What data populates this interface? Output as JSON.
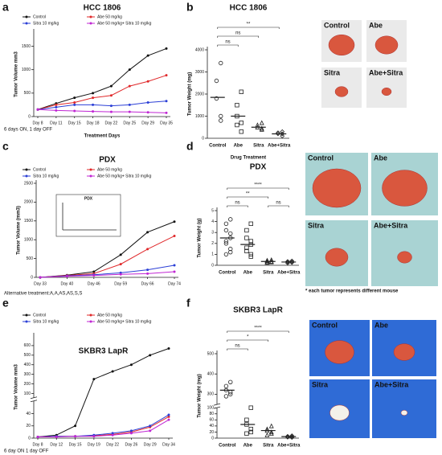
{
  "chart_data": [
    {
      "type": "line",
      "panel": "a",
      "title": "HCC 1806",
      "ylabel": "Tumor Volume mm3",
      "xlabel": "Treatment Days",
      "note": "6 days ON, 1 day OFF",
      "categories": [
        "Day 8",
        "Day 11",
        "Day 15",
        "Day 18",
        "Day 22",
        "Day 25",
        "Day 29",
        "Day 35"
      ],
      "ylim": [
        0,
        1800
      ],
      "yticks": [
        0,
        500,
        1000,
        1500
      ],
      "series": [
        {
          "name": "Control",
          "color": "#111111",
          "values": [
            150,
            280,
            400,
            500,
            650,
            1000,
            1300,
            1450
          ]
        },
        {
          "name": "Abe 50 mg/kg",
          "color": "#e0282a",
          "values": [
            150,
            250,
            300,
            400,
            450,
            650,
            750,
            880
          ]
        },
        {
          "name": "Sitra 10 mg/kg",
          "color": "#2b3fd6",
          "values": [
            150,
            200,
            250,
            250,
            230,
            250,
            300,
            330
          ]
        },
        {
          "name": "Abe 50 mg/kg+ Sitra 10 mg/kg",
          "color": "#c026d3",
          "values": [
            150,
            130,
            120,
            110,
            100,
            100,
            90,
            80
          ]
        }
      ]
    },
    {
      "type": "dot",
      "panel": "b",
      "title": "HCC 1806",
      "ylabel": "Tumor Weight (mg)",
      "xlabel": "Drug Treatment",
      "categories": [
        "Control",
        "Abe",
        "Sitra",
        "Abe+Sitra"
      ],
      "markers": [
        "circle",
        "square",
        "triangle",
        "diamond"
      ],
      "ylim": [
        0,
        4000
      ],
      "yticks": [
        0,
        1000,
        2000,
        3000,
        4000
      ],
      "points": [
        [
          3400,
          2600,
          1800,
          1000,
          800
        ],
        [
          2100,
          1500,
          1000,
          700,
          300,
          600
        ],
        [
          700,
          600,
          500,
          400,
          450
        ],
        [
          300,
          200,
          250,
          100,
          200
        ]
      ],
      "means": [
        1850,
        1000,
        500,
        200
      ],
      "comparisons": [
        {
          "from": 0,
          "to": 1,
          "label": "ns"
        },
        {
          "from": 0,
          "to": 2,
          "label": "ns"
        },
        {
          "from": 0,
          "to": 3,
          "label": "**"
        }
      ]
    },
    {
      "type": "line",
      "panel": "c",
      "title": "PDX",
      "ylabel": "Tumor Volume (mm3)",
      "note": "Alternative treatment:A,A,AS,AS,S,S",
      "inset": {
        "title": "PDX"
      },
      "categories": [
        "Day 33",
        "Day 40",
        "Day 46",
        "Day 59",
        "Day 66",
        "Day 74"
      ],
      "ylim": [
        0,
        2500
      ],
      "yticks": [
        0,
        500,
        1000,
        1500,
        2000,
        2500
      ],
      "series": [
        {
          "name": "Control",
          "color": "#111111",
          "values": [
            0,
            60,
            150,
            600,
            1200,
            1480
          ]
        },
        {
          "name": "Abe 50 mg/kg",
          "color": "#e0282a",
          "values": [
            0,
            50,
            100,
            350,
            750,
            1100
          ]
        },
        {
          "name": "Sitra 10 mg/kg",
          "color": "#2b3fd6",
          "values": [
            0,
            40,
            70,
            120,
            200,
            320
          ]
        },
        {
          "name": "Abe 50 mg/kg+ Sitra 10 mg/kg",
          "color": "#c026d3",
          "values": [
            0,
            30,
            50,
            80,
            100,
            150
          ]
        }
      ]
    },
    {
      "type": "dot",
      "panel": "d",
      "title": "PDX",
      "ylabel": "Tumor Weight (g)",
      "categories": [
        "Control",
        "Abe",
        "Sitra",
        "Abe+Sitra"
      ],
      "markers": [
        "circle",
        "square",
        "triangle",
        "diamond"
      ],
      "ylim": [
        0,
        5
      ],
      "yticks": [
        0,
        1,
        2,
        3,
        4,
        5
      ],
      "points": [
        [
          4.2,
          3.8,
          3.2,
          2.9,
          2.5,
          2.2,
          2.0,
          1.5,
          1.2,
          1.0
        ],
        [
          3.8,
          3.2,
          2.5,
          2.2,
          1.9,
          1.6,
          1.3,
          1.0,
          0.8
        ],
        [
          0.5,
          0.45,
          0.4,
          0.35,
          0.3,
          0.3,
          0.25
        ],
        [
          0.4,
          0.35,
          0.3,
          0.3,
          0.25,
          0.2,
          0.3
        ]
      ],
      "means": [
        2.5,
        1.9,
        0.35,
        0.3
      ],
      "comparisons": [
        {
          "from": 0,
          "to": 1,
          "label": "ns"
        },
        {
          "from": 0,
          "to": 2,
          "label": "**"
        },
        {
          "from": 0,
          "to": 3,
          "label": "****"
        },
        {
          "from": 2,
          "to": 3,
          "label": "ns"
        }
      ]
    },
    {
      "type": "line",
      "panel": "e",
      "title": "SKBR3 LapR",
      "ylabel": "Tumor Volume mm3",
      "xlabel": "Treatment Days",
      "note": "6 day ON 1 day OFF",
      "categories": [
        "Day 8",
        "Day 12",
        "Day 15",
        "Day 19",
        "Day 22",
        "Day 26",
        "Day 29",
        "Day 34"
      ],
      "ylim": [
        [
          0,
          60
        ],
        [
          60,
          700
        ]
      ],
      "yticks": [
        0,
        20,
        40,
        100,
        200,
        300,
        400,
        500,
        600
      ],
      "series": [
        {
          "name": "Control",
          "color": "#111111",
          "values": [
            2,
            5,
            20,
            250,
            330,
            400,
            500,
            570
          ]
        },
        {
          "name": "Abe 50 mg/kg",
          "color": "#e0282a",
          "values": [
            2,
            3,
            3,
            4,
            6,
            10,
            18,
            35
          ]
        },
        {
          "name": "Sitra 10 mg/kg",
          "color": "#2b3fd6",
          "values": [
            2,
            3,
            3,
            5,
            8,
            12,
            20,
            38
          ]
        },
        {
          "name": "Abe 50 mg/kg+ Sitra 10 mg/kg",
          "color": "#c026d3",
          "values": [
            2,
            2,
            3,
            3,
            5,
            8,
            12,
            30
          ]
        }
      ]
    },
    {
      "type": "dot",
      "panel": "f",
      "title": "SKBR3 LapR",
      "ylabel": "Tumor Weight (mg)",
      "categories": [
        "Control",
        "Abe",
        "Sitra",
        "Abe+Sitra"
      ],
      "markers": [
        "circle",
        "square",
        "triangle",
        "diamond"
      ],
      "ylim": [
        [
          0,
          100
        ],
        [
          250,
          500
        ]
      ],
      "yticks": [
        0,
        20,
        40,
        60,
        80,
        100,
        300,
        400,
        500
      ],
      "points": [
        [
          360,
          340,
          320,
          300,
          310,
          290
        ],
        [
          100,
          60,
          45,
          30,
          20,
          15
        ],
        [
          40,
          30,
          25,
          20,
          15,
          10
        ],
        [
          8,
          5,
          3,
          2,
          5,
          6
        ]
      ],
      "means": [
        320,
        45,
        25,
        5
      ],
      "comparisons": [
        {
          "from": 0,
          "to": 1,
          "label": "ns"
        },
        {
          "from": 0,
          "to": 2,
          "label": "*"
        },
        {
          "from": 0,
          "to": 3,
          "label": "****"
        }
      ]
    }
  ],
  "photos": [
    {
      "labels": [
        "Control",
        "Abe",
        "Sitra",
        "Abe+Sitra"
      ]
    },
    {
      "labels": [
        "Control",
        "Abe",
        "Sitra",
        "Abe+Sitra"
      ],
      "note": "* each tumor represents different mouse"
    },
    {
      "labels": [
        "Control",
        "Abe",
        "Sitra",
        "Abe+Sitra"
      ]
    }
  ]
}
